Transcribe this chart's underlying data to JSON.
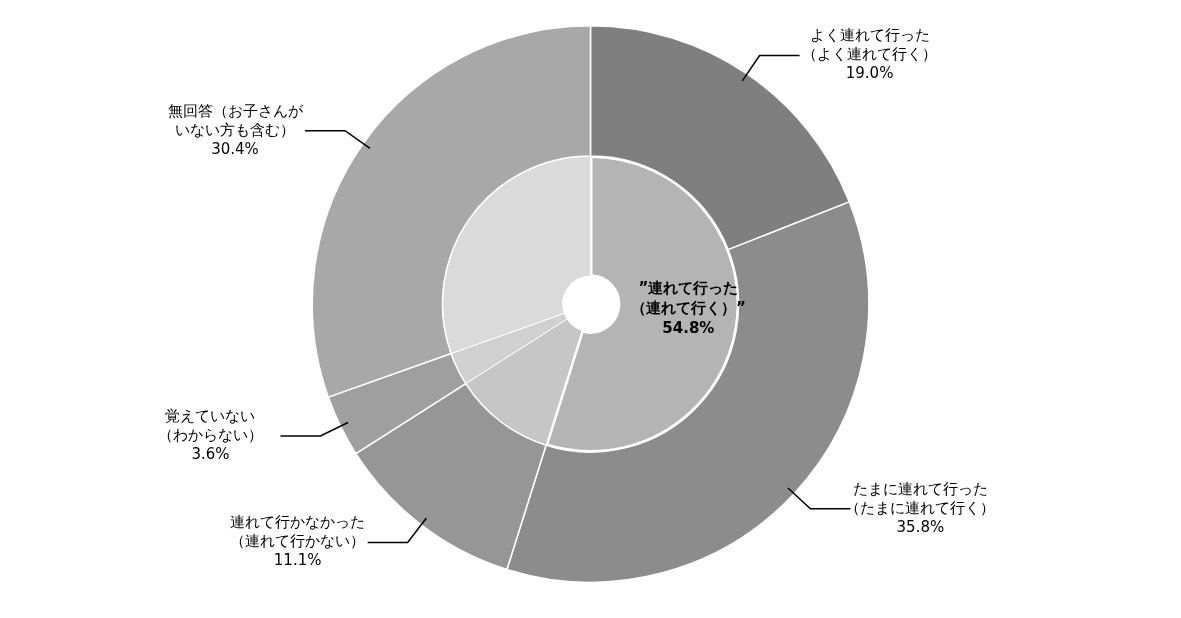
{
  "chart_data": {
    "type": "donut",
    "categories": [
      "よく連れて行った（よく連れて行く）",
      "たまに連れて行った（たまに連れて行く）",
      "連れて行かなかった（連れて行かない）",
      "覚えていない（わからない）",
      "無回答（お子さんがいない方も含む）"
    ],
    "series": [
      {
        "values": [
          19.0,
          35.8,
          11.1,
          3.6,
          30.4
        ],
        "colors": [
          "#7f7f7f",
          "#8c8c8c",
          "#969696",
          "#9f9f9f",
          "#a8a8a8"
        ],
        "value_labels": [
          "19.0%",
          "35.8%",
          "11.1%",
          "3.6%",
          "30.4%"
        ]
      },
      {
        "values": [
          54.8,
          null,
          11.1,
          3.6,
          30.4
        ],
        "colors": [
          "#b4b4b4",
          "#b4b4b4",
          "#c6c6c6",
          "#d0d0d0",
          "#dadada"
        ],
        "value_labels": [
          "54.8%",
          null,
          null,
          null,
          null
        ]
      }
    ],
    "annotations": [
      "”連れて行った（連れて行く）”"
    ],
    "legend": false
  }
}
